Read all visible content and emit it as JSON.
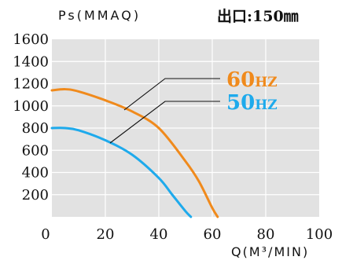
{
  "chart_data": {
    "type": "line",
    "title": "出口:150㎜",
    "ylabel": "Ps(MMAQ)",
    "xlabel": "Q(M³/MIN)",
    "xlim": [
      0,
      100
    ],
    "ylim": [
      0,
      1600
    ],
    "x_ticks": [
      "0",
      "20",
      "40",
      "60",
      "80",
      "100"
    ],
    "y_ticks": [
      "200",
      "400",
      "600",
      "800",
      "1000",
      "1200",
      "1400",
      "1600"
    ],
    "grid": true,
    "series": [
      {
        "name": "60HZ",
        "color": "#f08a1c",
        "x": [
          0,
          5,
          10,
          20,
          30,
          40,
          50,
          55,
          60,
          62
        ],
        "y": [
          1140,
          1150,
          1130,
          1050,
          950,
          800,
          500,
          320,
          80,
          0
        ]
      },
      {
        "name": "50HZ",
        "color": "#1eaaec",
        "x": [
          0,
          5,
          10,
          20,
          30,
          40,
          45,
          50,
          52
        ],
        "y": [
          800,
          800,
          780,
          690,
          560,
          350,
          200,
          50,
          0
        ]
      }
    ]
  }
}
